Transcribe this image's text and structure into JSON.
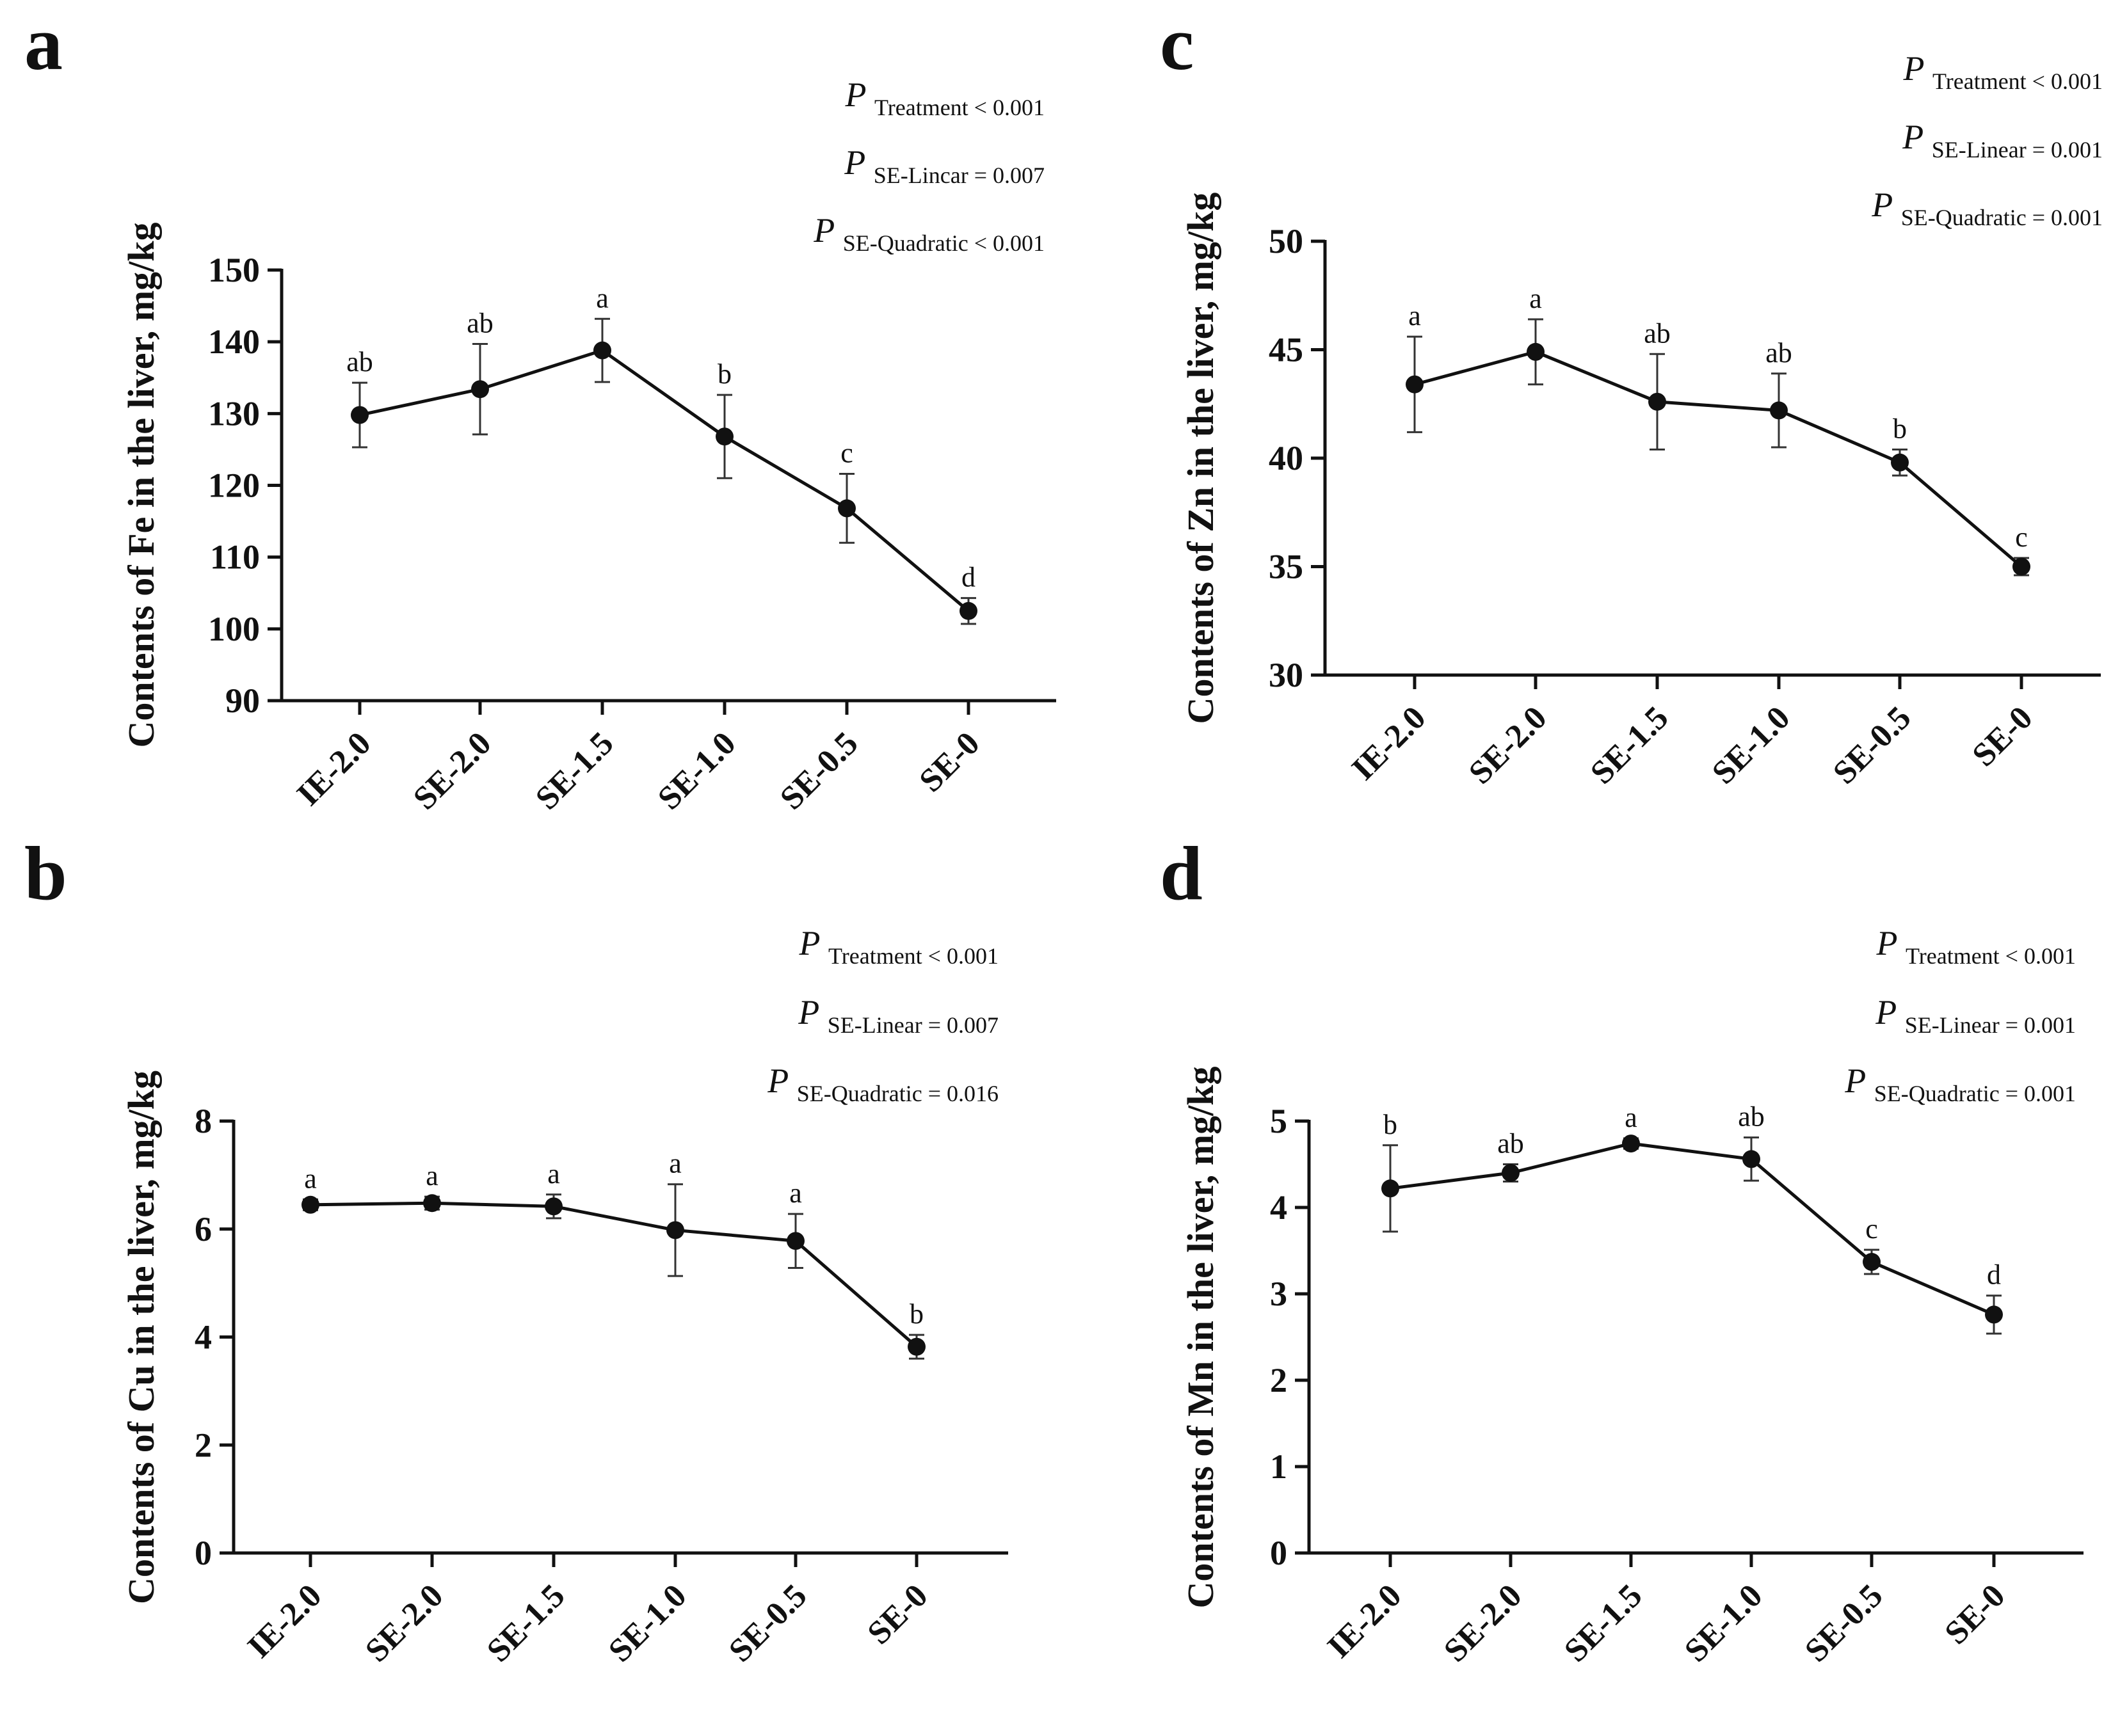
{
  "chart_data": [
    {
      "panel": "a",
      "type": "line",
      "ylabel": "Contents of Fe in the liver, mg/kg",
      "categories": [
        "IE-2.0",
        "SE-2.0",
        "SE-1.5",
        "SE-1.0",
        "SE-0.5",
        "SE-0"
      ],
      "ylim": [
        90,
        150
      ],
      "yticks": [
        90,
        100,
        110,
        120,
        130,
        140,
        150
      ],
      "ytick_labels": [
        "90",
        "100",
        "110",
        "120",
        "130",
        "140",
        "150"
      ],
      "values": [
        129.8,
        133.4,
        138.8,
        126.8,
        116.8,
        102.5
      ],
      "errors": [
        4.5,
        6.3,
        4.4,
        5.8,
        4.8,
        1.8
      ],
      "letters": [
        "ab",
        "ab",
        "a",
        "b",
        "c",
        "d"
      ],
      "stats": [
        {
          "sub": "Treatment",
          "rel": "< 0.001"
        },
        {
          "sub": "SE-Lincar",
          "rel": "= 0.007"
        },
        {
          "sub": "SE-Quadratic",
          "rel": "< 0.001"
        }
      ]
    },
    {
      "panel": "b",
      "type": "line",
      "ylabel": "Contents of Cu in the liver, mg/kg",
      "categories": [
        "IE-2.0",
        "SE-2.0",
        "SE-1.5",
        "SE-1.0",
        "SE-0.5",
        "SE-0"
      ],
      "ylim": [
        0,
        8
      ],
      "yticks": [
        0,
        2,
        4,
        6,
        8
      ],
      "ytick_labels": [
        "0",
        "2",
        "4",
        "6",
        "8"
      ],
      "values": [
        6.45,
        6.48,
        6.42,
        5.98,
        5.78,
        3.82
      ],
      "errors": [
        0.1,
        0.12,
        0.22,
        0.85,
        0.5,
        0.22
      ],
      "letters": [
        "a",
        "a",
        "a",
        "a",
        "a",
        "b"
      ],
      "stats": [
        {
          "sub": "Treatment",
          "rel": "< 0.001"
        },
        {
          "sub": "SE-Linear",
          "rel": "= 0.007"
        },
        {
          "sub": "SE-Quadratic",
          "rel": "= 0.016"
        }
      ]
    },
    {
      "panel": "c",
      "type": "line",
      "ylabel": "Contents of Zn in the liver, mg/kg",
      "categories": [
        "IE-2.0",
        "SE-2.0",
        "SE-1.5",
        "SE-1.0",
        "SE-0.5",
        "SE-0"
      ],
      "ylim": [
        30,
        50
      ],
      "yticks": [
        30,
        35,
        40,
        45,
        50
      ],
      "ytick_labels": [
        "30",
        "35",
        "40",
        "45",
        "50"
      ],
      "values": [
        43.4,
        44.9,
        42.6,
        42.2,
        39.8,
        35.0
      ],
      "errors": [
        2.2,
        1.5,
        2.2,
        1.7,
        0.6,
        0.4
      ],
      "letters": [
        "a",
        "a",
        "ab",
        "ab",
        "b",
        "c"
      ],
      "stats": [
        {
          "sub": "Treatment",
          "rel": "< 0.001"
        },
        {
          "sub": "SE-Linear",
          "rel": "= 0.001"
        },
        {
          "sub": "SE-Quadratic",
          "rel": "= 0.001"
        }
      ]
    },
    {
      "panel": "d",
      "type": "line",
      "ylabel": "Contents of Mn in the liver, mg/kg",
      "categories": [
        "IE-2.0",
        "SE-2.0",
        "SE-1.5",
        "SE-1.0",
        "SE-0.5",
        "SE-0"
      ],
      "ylim": [
        0,
        5
      ],
      "yticks": [
        0,
        1,
        2,
        3,
        4,
        5
      ],
      "ytick_labels": [
        "0",
        "1",
        "2",
        "3",
        "4",
        "5"
      ],
      "values": [
        4.22,
        4.4,
        4.74,
        4.56,
        3.37,
        2.76
      ],
      "errors": [
        0.5,
        0.1,
        0.06,
        0.25,
        0.14,
        0.22
      ],
      "letters": [
        "b",
        "ab",
        "a",
        "ab",
        "c",
        "d"
      ],
      "stats": [
        {
          "sub": "Treatment",
          "rel": "< 0.001"
        },
        {
          "sub": "SE-Linear",
          "rel": "= 0.001"
        },
        {
          "sub": "SE-Quadratic",
          "rel": "= 0.001"
        }
      ]
    }
  ]
}
